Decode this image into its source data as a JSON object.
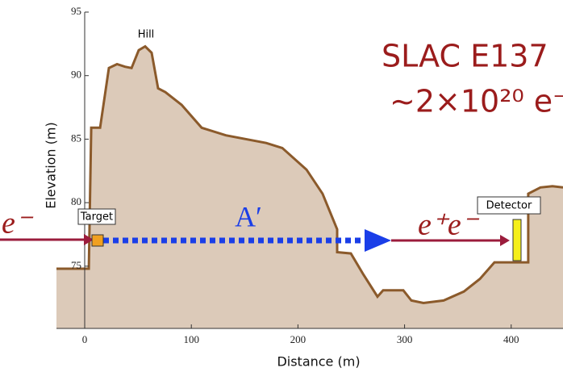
{
  "chart_data": {
    "type": "area",
    "xlabel": "Distance (m)",
    "ylabel": "Elevation (m)",
    "x": [
      -26.5,
      3.8,
      6.1,
      14.4,
      22.7,
      30.3,
      37.8,
      43.9,
      50.7,
      56.7,
      62.8,
      68.8,
      75.6,
      90.8,
      109.7,
      132.4,
      170.2,
      185.3,
      208.0,
      223.1,
      236.8,
      236.8,
      249.6,
      261.0,
      274.6,
      279.9,
      298.8,
      306.4,
      317.7,
      336.6,
      355.6,
      370.7,
      384.3,
      416.0,
      416.0,
      427.4,
      438.7,
      448.6
    ],
    "values": [
      74.8,
      74.8,
      85.9,
      85.9,
      90.6,
      90.9,
      90.7,
      90.6,
      92.0,
      92.3,
      91.8,
      89.0,
      88.7,
      87.7,
      85.9,
      85.3,
      84.7,
      84.3,
      82.6,
      80.7,
      77.9,
      76.1,
      76.0,
      74.4,
      72.6,
      73.1,
      73.1,
      72.3,
      72.1,
      72.3,
      73.0,
      74.0,
      75.3,
      75.3,
      80.7,
      81.2,
      81.3,
      81.2
    ],
    "color": "#dccab9",
    "line_color": "#8b5a2b",
    "xlim": [
      -26.5,
      448.6
    ],
    "ylim": [
      70.1,
      95
    ],
    "xticks": [
      0,
      100,
      200,
      300,
      400
    ],
    "yticks": [
      75,
      80,
      85,
      90,
      95
    ],
    "annotations": [
      "Hill",
      "SLAC E137",
      "~2×10²⁰ e⁻",
      "Target",
      "Detector",
      "A′",
      "e⁻",
      "e⁺e⁻"
    ]
  }
}
